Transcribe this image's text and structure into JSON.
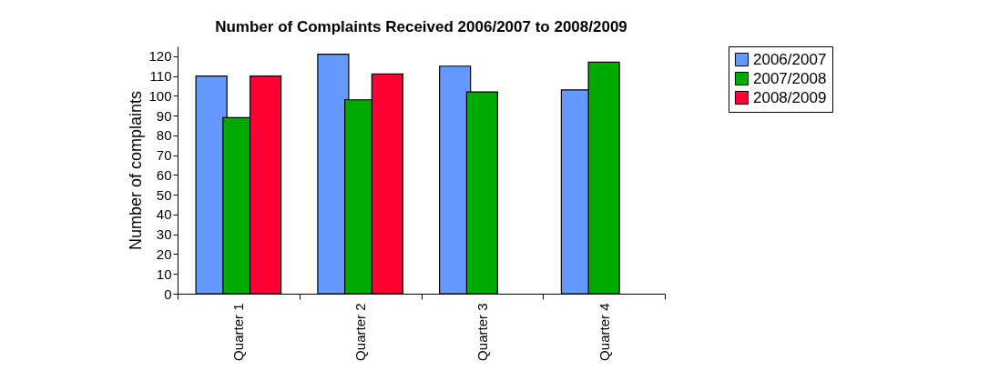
{
  "chart_data": {
    "type": "bar",
    "title": "Number of Complaints Received 2006/2007 to 2008/2009",
    "ylabel": "Number of complaints",
    "categories": [
      "Quarter 1",
      "Quarter 2",
      "Quarter 3",
      "Quarter 4"
    ],
    "series": [
      {
        "name": "2006/2007",
        "color": "#6699ff",
        "values": [
          110,
          121,
          115,
          103
        ]
      },
      {
        "name": "2007/2008",
        "color": "#00aa00",
        "values": [
          89,
          98,
          102,
          117
        ]
      },
      {
        "name": "2008/2009",
        "color": "#ff0033",
        "values": [
          110,
          111,
          null,
          null
        ]
      }
    ],
    "ylim": [
      0,
      125
    ],
    "yticks": [
      0,
      10,
      20,
      30,
      40,
      50,
      60,
      70,
      80,
      90,
      100,
      110,
      120
    ],
    "grid": false,
    "legend": "right"
  }
}
